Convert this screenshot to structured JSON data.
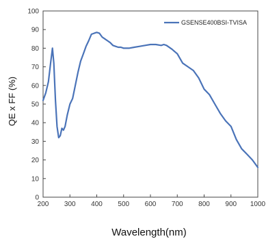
{
  "chart_data": {
    "type": "line",
    "title": "",
    "xlabel": "Wavelength(nm)",
    "ylabel": "QE x FF (%)",
    "xlim": [
      200,
      1000
    ],
    "ylim": [
      0,
      100
    ],
    "x_ticks": [
      "200",
      "300",
      "400",
      "500",
      "600",
      "700",
      "800",
      "900",
      "1000"
    ],
    "y_ticks": [
      "0",
      "10",
      "20",
      "30",
      "40",
      "50",
      "60",
      "70",
      "80",
      "90",
      "100"
    ],
    "grid": false,
    "legend_position": "top-right",
    "series": [
      {
        "name": "GSENSE400BSI-TVISA",
        "color": "#4a73b8",
        "x": [
          200,
          210,
          220,
          228,
          235,
          240,
          246,
          252,
          258,
          264,
          270,
          276,
          282,
          290,
          300,
          310,
          320,
          330,
          340,
          350,
          360,
          370,
          380,
          390,
          400,
          410,
          420,
          430,
          440,
          450,
          460,
          470,
          480,
          490,
          500,
          520,
          540,
          560,
          580,
          600,
          620,
          640,
          650,
          660,
          680,
          700,
          720,
          740,
          760,
          780,
          800,
          820,
          840,
          860,
          880,
          900,
          920,
          940,
          960,
          980,
          1000
        ],
        "y": [
          52,
          56,
          62,
          72,
          80,
          72,
          52,
          38,
          32,
          33,
          37,
          36,
          38,
          44,
          50,
          53,
          60,
          67,
          73,
          77,
          81,
          84,
          87.5,
          88,
          88.5,
          88,
          86,
          85,
          84,
          83,
          81.5,
          81,
          80.5,
          80.5,
          80,
          80,
          80.5,
          81,
          81.5,
          82,
          82,
          81.5,
          82,
          81.5,
          79.5,
          77,
          72,
          70,
          68,
          64,
          58,
          55,
          50,
          45,
          41,
          38,
          31,
          26,
          23,
          20,
          16
        ]
      }
    ]
  }
}
